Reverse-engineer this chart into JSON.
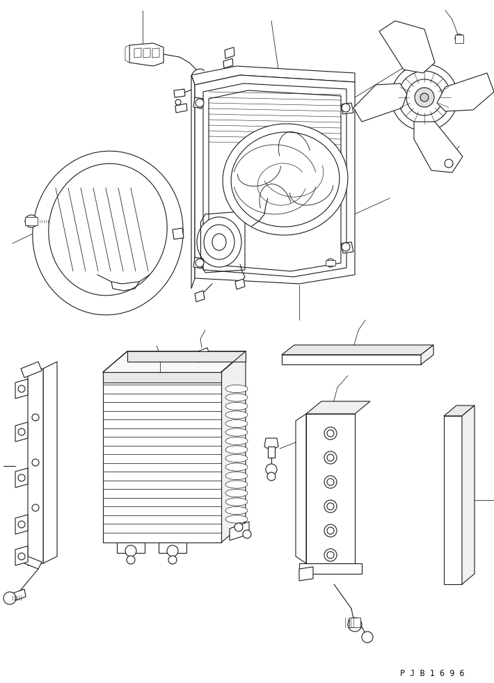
{
  "bg_color": "#ffffff",
  "lc": "#1a1a1a",
  "lw": 0.8,
  "fig_width": 7.1,
  "fig_height": 9.82,
  "watermark": "P J B 1 6 9 6"
}
